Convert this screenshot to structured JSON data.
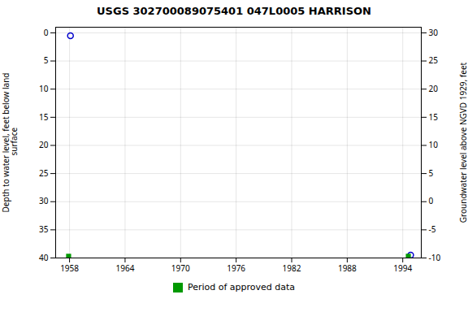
{
  "chart_data": {
    "type": "scatter",
    "title": "USGS 302700089075401 047L0005  HARRISON",
    "ylabel": "Depth to water level, feet below land\n surface",
    "y2label": "Groundwater level above NGVD 1929, feet",
    "xlim": [
      1956.5,
      1996
    ],
    "xticks": [
      1958,
      1964,
      1970,
      1976,
      1982,
      1988,
      1994
    ],
    "ylim": [
      40,
      -1
    ],
    "yticks": [
      0,
      5,
      10,
      15,
      20,
      25,
      30,
      35,
      40
    ],
    "y2lim": [
      -10,
      31
    ],
    "y2ticks": [
      30,
      25,
      20,
      15,
      10,
      5,
      0,
      -5,
      -10
    ],
    "grid": true,
    "legend": "bottom",
    "series": [
      {
        "x": [
          1958.1,
          1994.85
        ],
        "values": [
          0.5,
          39.5
        ],
        "color": "#0000cc",
        "marker": "circle"
      },
      {
        "name": "Period of approved data",
        "x": [
          1957.9,
          1994.6
        ],
        "values": [
          39.7,
          39.7
        ],
        "color": "#009900",
        "marker": "square"
      }
    ]
  }
}
